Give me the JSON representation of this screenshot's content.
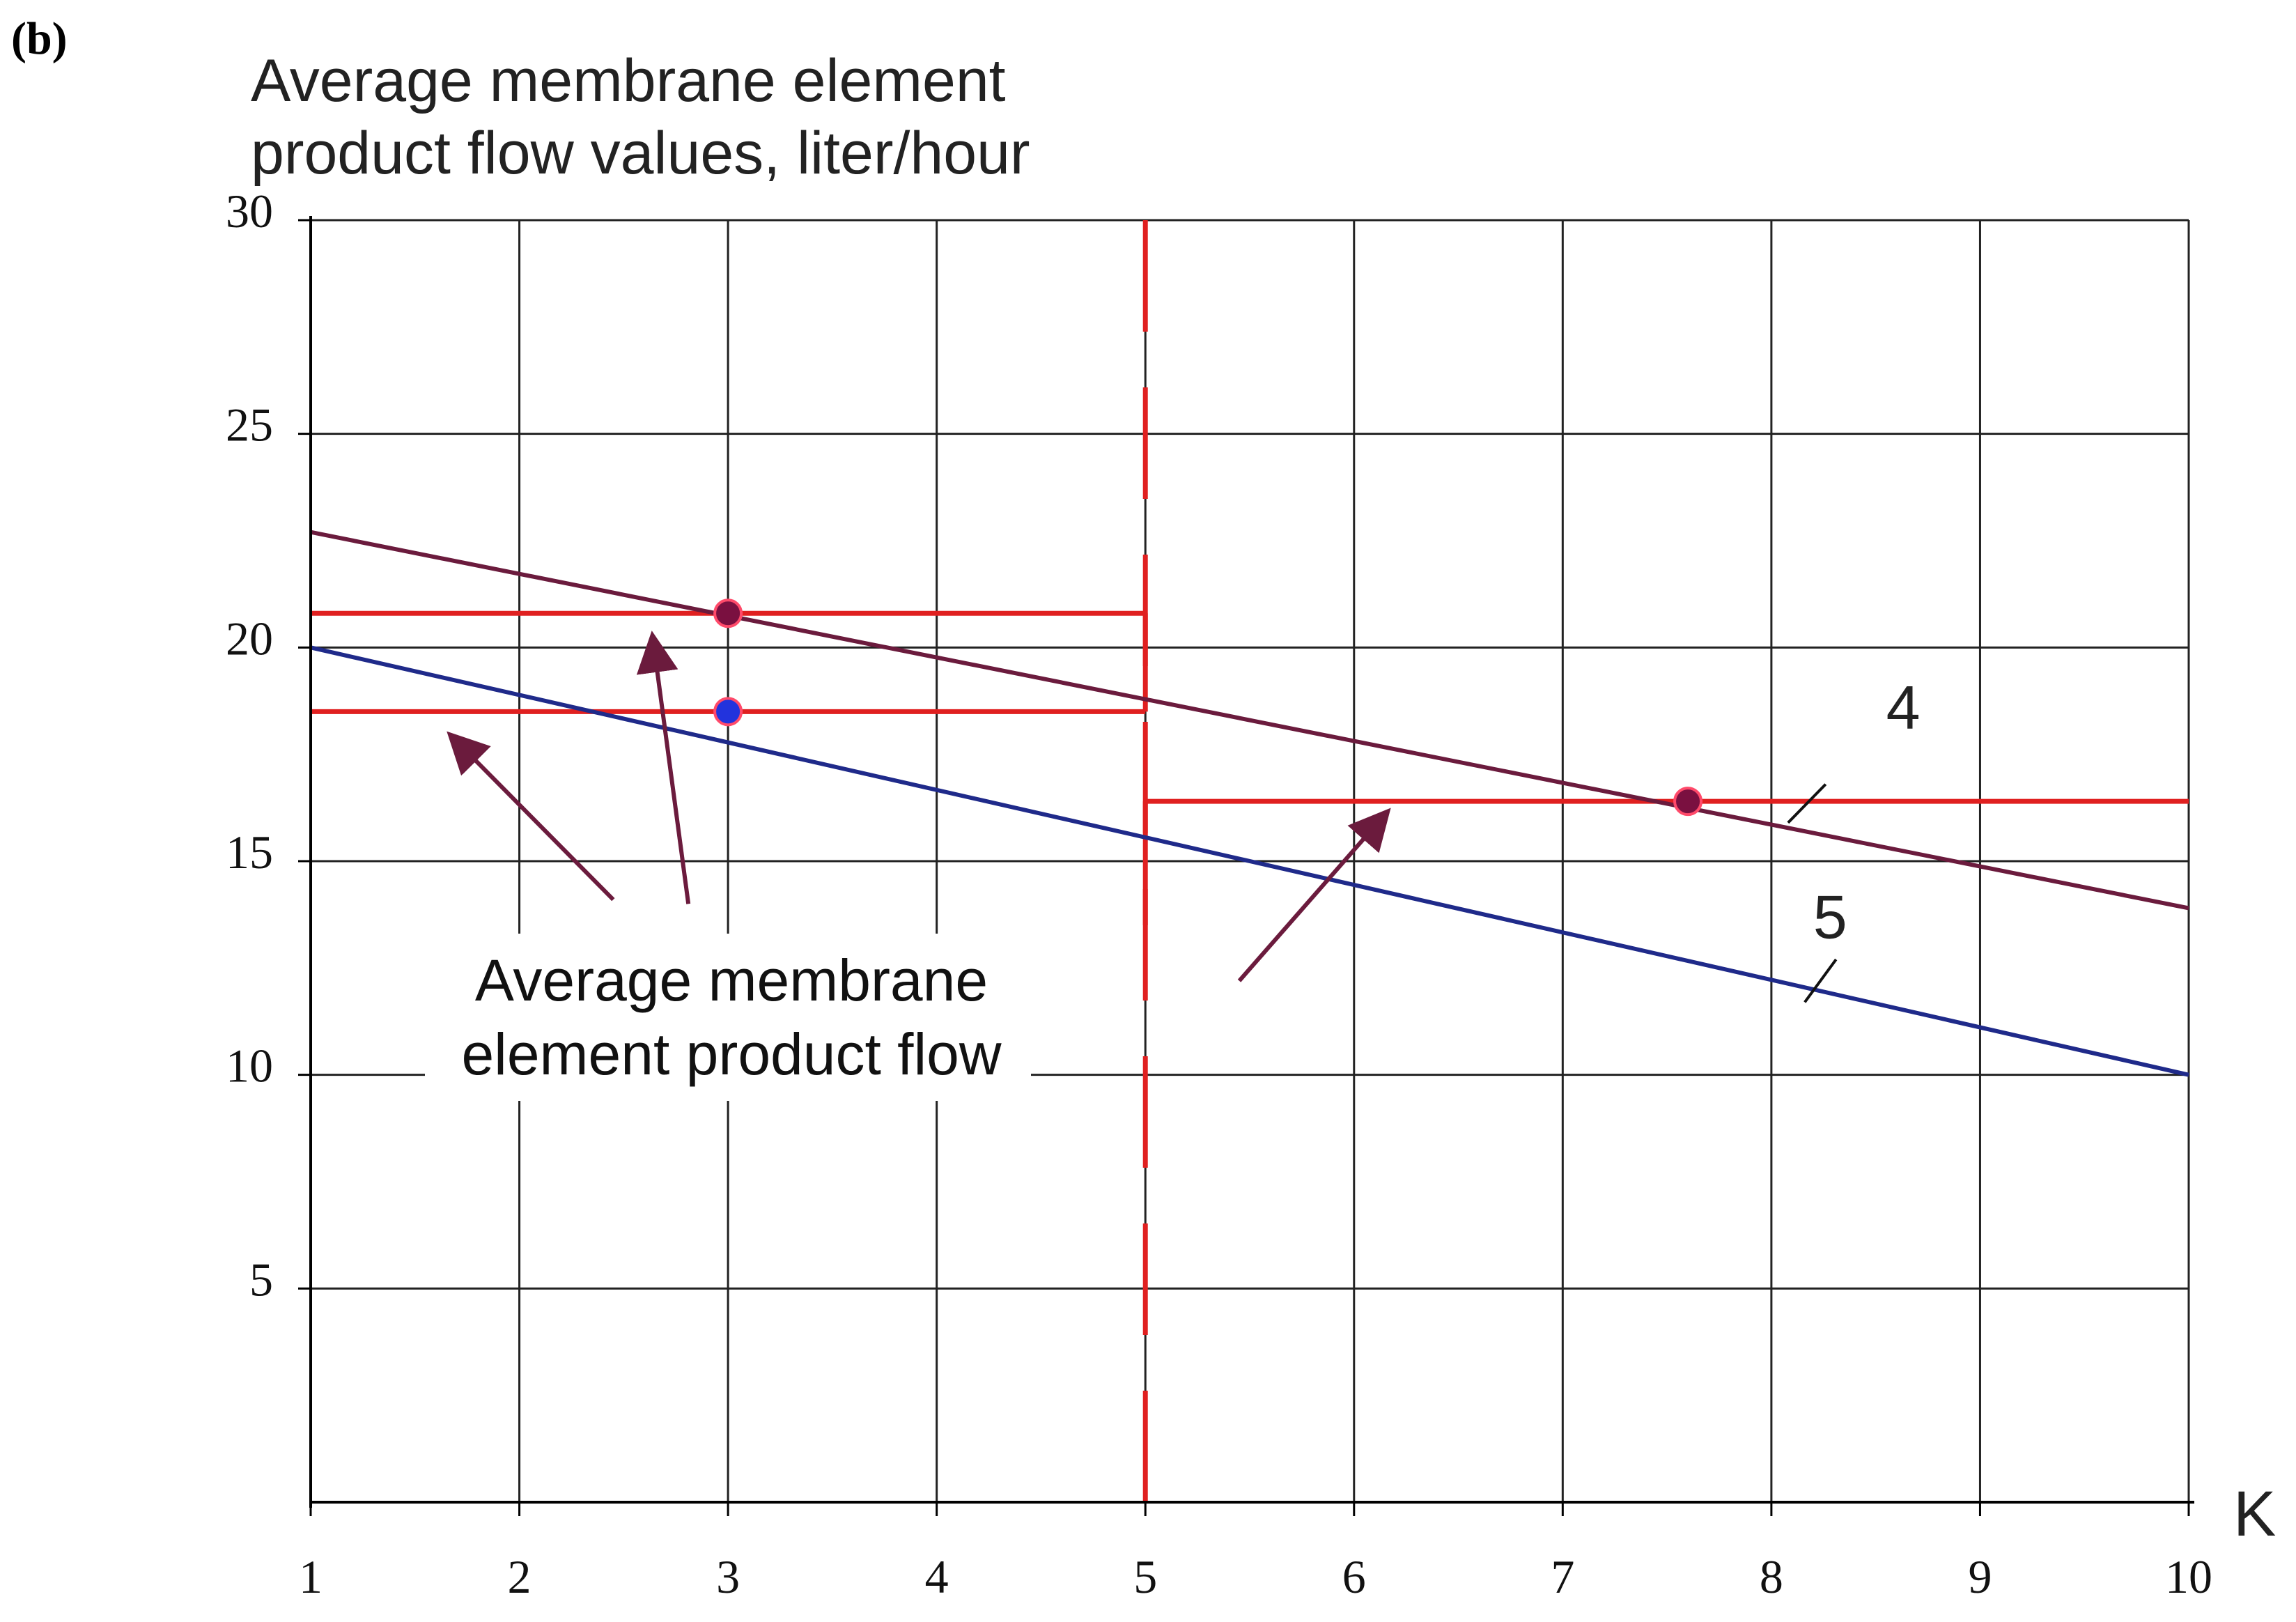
{
  "panel_label": "(b)",
  "chart_data": {
    "type": "line",
    "title": "Average membrane element product flow values, liter/hour",
    "ylabel_lines": [
      "Average membrane element",
      "product flow values, liter/hour"
    ],
    "xlabel": "K",
    "xlim": [
      1,
      10
    ],
    "ylim": [
      0,
      30
    ],
    "x_ticks": [
      1,
      2,
      3,
      4,
      5,
      6,
      7,
      8,
      9,
      10
    ],
    "x_tick_labels": [
      "1",
      "2",
      "3",
      "4",
      "5",
      "6",
      "7",
      "8",
      "9",
      "10"
    ],
    "y_ticks": [
      5,
      10,
      15,
      20,
      25,
      30
    ],
    "y_tick_labels": [
      "5",
      "10",
      "15",
      "20",
      "25",
      "30"
    ],
    "grid": true,
    "series": [
      {
        "name": "4",
        "color": "#6b1b3d",
        "x": [
          1,
          10
        ],
        "y": [
          22.7,
          13.9
        ]
      },
      {
        "name": "5",
        "color": "#1f2a8a",
        "x": [
          1,
          10
        ],
        "y": [
          20.0,
          10.0
        ]
      }
    ],
    "points": [
      {
        "x": 3.0,
        "y": 20.8,
        "color": "#7a1040"
      },
      {
        "x": 3.0,
        "y": 18.5,
        "color": "#2233dd"
      },
      {
        "x": 7.6,
        "y": 16.4,
        "color": "#7a1040"
      }
    ],
    "reference_lines": {
      "color": "#e02020",
      "horizontal": [
        {
          "y": 20.8,
          "x_from": 1,
          "x_to": 5
        },
        {
          "y": 18.5,
          "x_from": 1,
          "x_to": 5
        },
        {
          "y": 16.4,
          "x_from": 5,
          "x_to": 10
        }
      ],
      "vertical_solid": [
        {
          "x": 5,
          "y_from": 18.5,
          "y_to": 20.8
        },
        {
          "x": 5,
          "y_from": 13.5,
          "y_to": 16.4
        }
      ],
      "vertical_dashed": {
        "x": 5
      }
    },
    "annotation": {
      "lines": [
        "Average membrane",
        "element product flow"
      ],
      "arrow_color": "#6b1b3d",
      "arrows": [
        {
          "from": [
            2.45,
            14.1
          ],
          "to": [
            1.68,
            17.9
          ]
        },
        {
          "from": [
            2.81,
            14.0
          ],
          "to": [
            2.64,
            20.2
          ]
        },
        {
          "from": [
            5.45,
            12.2
          ],
          "to": [
            6.15,
            16.1
          ]
        }
      ]
    },
    "curve_labels": [
      {
        "text": "4",
        "x": 8.55,
        "y": 18.1,
        "tick_from": [
          8.26,
          16.8
        ],
        "tick_to": [
          8.08,
          15.9
        ]
      },
      {
        "text": "5",
        "x": 8.2,
        "y": 13.2,
        "tick_from": [
          8.31,
          12.7
        ],
        "tick_to": [
          8.16,
          11.7
        ]
      }
    ]
  }
}
